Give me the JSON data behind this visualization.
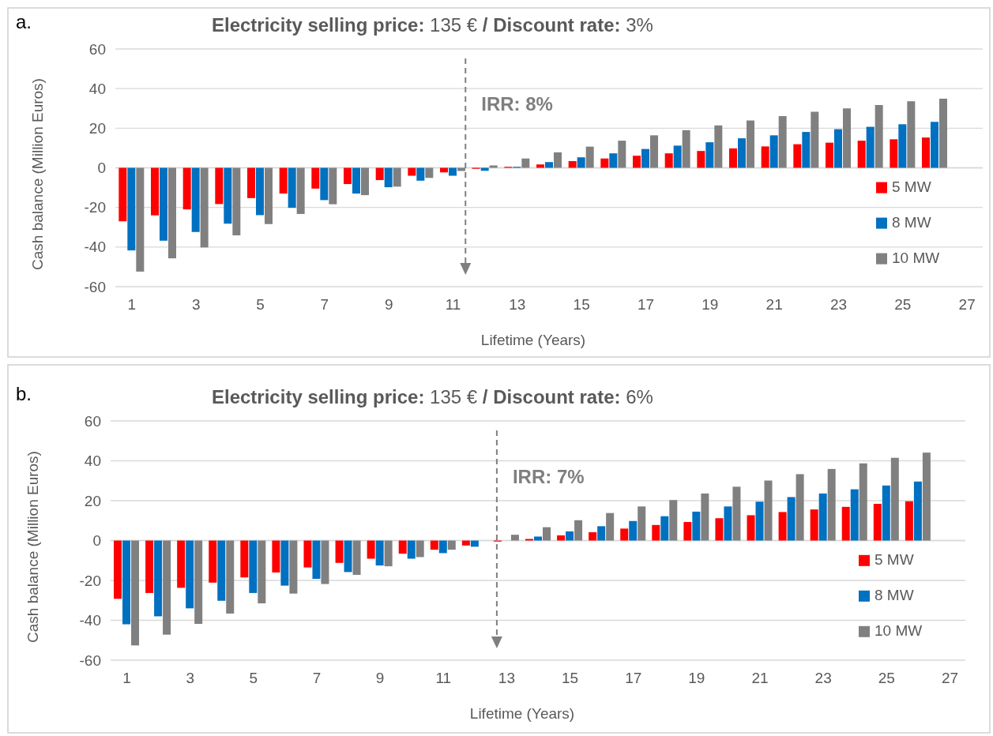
{
  "chart_data": [
    {
      "type": "bar",
      "title": "Electricity selling price: 135 € / Discount rate: 3%",
      "xlabel": "Lifetime (Years)",
      "ylabel": "Cash balance (Million Euros)",
      "annotations": [
        "a.",
        "IRR: 8%"
      ],
      "x": [
        1,
        2,
        3,
        4,
        5,
        6,
        7,
        8,
        9,
        10,
        11,
        12,
        13,
        14,
        15,
        16,
        17,
        18,
        19,
        20,
        21,
        22,
        23,
        24,
        25,
        26
      ],
      "xlim": [
        0.5,
        27.5
      ],
      "xticks": [
        1,
        3,
        5,
        7,
        9,
        11,
        13,
        15,
        17,
        19,
        21,
        23,
        25,
        27
      ],
      "ylim": [
        -60,
        60
      ],
      "yticks": [
        -60,
        -40,
        -20,
        0,
        20,
        40,
        60
      ],
      "grid": "y",
      "legend": "bottom right",
      "ref_lines": [
        {
          "axis": "x",
          "value": 11.4,
          "color": "#7f7f7f",
          "line_style": "dashed"
        }
      ],
      "series": [
        {
          "name": "5 MW",
          "color": "#ff0000",
          "values": [
            -27,
            -24,
            -21,
            -18.3,
            -15.3,
            -13,
            -10.5,
            -8.2,
            -6.2,
            -4,
            -2.3,
            -0.5,
            0.5,
            1.7,
            3.4,
            4.7,
            6.1,
            7.3,
            8.5,
            9.8,
            10.8,
            11.9,
            12.7,
            13.7,
            14.4,
            15.3
          ]
        },
        {
          "name": "8 MW",
          "color": "#0070c0",
          "values": [
            -41.7,
            -36.8,
            -32.4,
            -28.2,
            -23.9,
            -20.2,
            -16.3,
            -13,
            -9.8,
            -6.5,
            -4,
            -1.5,
            0.5,
            2.9,
            5.3,
            7.3,
            9.5,
            11.2,
            12.9,
            14.9,
            16.4,
            18.1,
            19.5,
            20.7,
            22,
            23.2
          ]
        },
        {
          "name": "10 MW",
          "color": "#808080",
          "values": [
            -52.4,
            -45.7,
            -40.2,
            -34.1,
            -28.4,
            -23.3,
            -18.4,
            -13.8,
            -9.5,
            -5.1,
            -1.6,
            1.2,
            4.7,
            7.8,
            10.7,
            13.7,
            16.4,
            19,
            21.4,
            23.9,
            26.1,
            28.3,
            30,
            31.7,
            33.6,
            34.9
          ]
        }
      ]
    },
    {
      "type": "bar",
      "title": "Electricity selling price: 135 € / Discount rate: 6%",
      "xlabel": "Lifetime (Years)",
      "ylabel": "Cash balance (Million Euros)",
      "annotations": [
        "b.",
        "IRR: 7%"
      ],
      "x": [
        1,
        2,
        3,
        4,
        5,
        6,
        7,
        8,
        9,
        10,
        11,
        12,
        13,
        14,
        15,
        16,
        17,
        18,
        19,
        20,
        21,
        22,
        23,
        24,
        25,
        26
      ],
      "xlim": [
        0.5,
        27.5
      ],
      "xticks": [
        1,
        3,
        5,
        7,
        9,
        11,
        13,
        15,
        17,
        19,
        21,
        23,
        25,
        27
      ],
      "ylim": [
        -60,
        60
      ],
      "yticks": [
        -60,
        -40,
        -20,
        0,
        20,
        40,
        60
      ],
      "grid": "y",
      "legend": "bottom right",
      "ref_lines": [
        {
          "axis": "x",
          "value": 12.7,
          "color": "#7f7f7f",
          "line_style": "dashed"
        }
      ],
      "series": [
        {
          "name": "5 MW",
          "color": "#ff0000",
          "values": [
            -29.2,
            -26.3,
            -23.7,
            -21.1,
            -18.5,
            -16,
            -13.5,
            -11.2,
            -9.1,
            -6.6,
            -4.6,
            -2.5,
            -0.5,
            0.8,
            2.6,
            4.2,
            6,
            7.8,
            9.3,
            11.2,
            12.7,
            14.3,
            15.6,
            16.9,
            18.4,
            19.7
          ]
        },
        {
          "name": "8 MW",
          "color": "#0070c0",
          "values": [
            -42,
            -38,
            -34,
            -30.2,
            -26.3,
            -22.6,
            -19.2,
            -15.8,
            -12.5,
            -9.1,
            -6.3,
            -3.1,
            null,
            2,
            4.6,
            7.2,
            9.8,
            12.2,
            14.5,
            17.1,
            19.5,
            21.8,
            23.6,
            25.7,
            27.6,
            29.6
          ]
        },
        {
          "name": "10 MW",
          "color": "#808080",
          "values": [
            -52.6,
            -47.2,
            -41.8,
            -36.6,
            -31.5,
            -26.6,
            -21.8,
            -17.2,
            -12.9,
            -8.3,
            -4.6,
            null,
            2.9,
            6.7,
            10.2,
            13.8,
            17.1,
            20.3,
            23.6,
            27,
            30.1,
            33.3,
            35.9,
            38.7,
            41.5,
            44.1
          ]
        }
      ]
    }
  ]
}
